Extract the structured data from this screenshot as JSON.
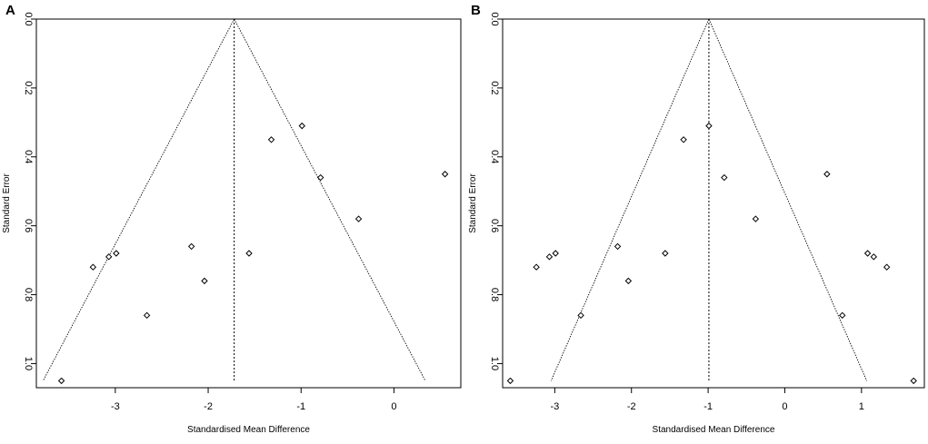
{
  "chart_data": [
    {
      "type": "scatter",
      "panel_label": "A",
      "title": "",
      "xlabel": "Standardised Mean Difference",
      "ylabel": "Standard Error",
      "xlim": [
        -3.85,
        0.72
      ],
      "ylim": [
        0,
        1.07
      ],
      "y_reversed": true,
      "xticks": [
        -3,
        -2,
        -1,
        0
      ],
      "yticks": [
        0.0,
        0.2,
        0.4,
        0.6,
        0.8,
        1.0
      ],
      "xtick_labels": [
        "-3",
        "-2",
        "-1",
        "0"
      ],
      "ytick_labels": [
        "0.0",
        "0.2",
        "0.4",
        "0.6",
        "0.8",
        "1.0"
      ],
      "summary_effect": -1.72,
      "funnel_se_max": 1.05,
      "points": [
        {
          "x": -3.58,
          "y": 1.05
        },
        {
          "x": -3.24,
          "y": 0.72
        },
        {
          "x": -3.07,
          "y": 0.69
        },
        {
          "x": -2.99,
          "y": 0.68
        },
        {
          "x": -2.66,
          "y": 0.86
        },
        {
          "x": -2.18,
          "y": 0.66
        },
        {
          "x": -2.04,
          "y": 0.76
        },
        {
          "x": -1.56,
          "y": 0.68
        },
        {
          "x": -1.32,
          "y": 0.35
        },
        {
          "x": -0.99,
          "y": 0.31
        },
        {
          "x": -0.79,
          "y": 0.46
        },
        {
          "x": -0.38,
          "y": 0.58
        },
        {
          "x": 0.55,
          "y": 0.45
        }
      ]
    },
    {
      "type": "scatter",
      "panel_label": "B",
      "title": "",
      "xlabel": "Standardised Mean Difference",
      "ylabel": "Standard Error",
      "xlim": [
        -3.68,
        1.82
      ],
      "ylim": [
        0,
        1.07
      ],
      "y_reversed": true,
      "xticks": [
        -3,
        -2,
        -1,
        0,
        1
      ],
      "yticks": [
        0.0,
        0.2,
        0.4,
        0.6,
        0.8,
        1.0
      ],
      "xtick_labels": [
        "-3",
        "-2",
        "-1",
        "0",
        "1"
      ],
      "ytick_labels": [
        "0.0",
        "0.2",
        "0.4",
        "0.6",
        "0.8",
        "1.0"
      ],
      "summary_effect": -0.99,
      "funnel_se_max": 1.05,
      "points": [
        {
          "x": -3.58,
          "y": 1.05
        },
        {
          "x": -3.24,
          "y": 0.72
        },
        {
          "x": -3.07,
          "y": 0.69
        },
        {
          "x": -2.99,
          "y": 0.68
        },
        {
          "x": -2.66,
          "y": 0.86
        },
        {
          "x": -2.18,
          "y": 0.66
        },
        {
          "x": -2.04,
          "y": 0.76
        },
        {
          "x": -1.56,
          "y": 0.68
        },
        {
          "x": -1.32,
          "y": 0.35
        },
        {
          "x": -0.99,
          "y": 0.31
        },
        {
          "x": -0.79,
          "y": 0.46
        },
        {
          "x": -0.38,
          "y": 0.58
        },
        {
          "x": 0.55,
          "y": 0.45
        },
        {
          "x": 0.75,
          "y": 0.86
        },
        {
          "x": 1.08,
          "y": 0.68
        },
        {
          "x": 1.16,
          "y": 0.69
        },
        {
          "x": 1.33,
          "y": 0.72
        },
        {
          "x": 1.68,
          "y": 1.05
        }
      ]
    }
  ]
}
